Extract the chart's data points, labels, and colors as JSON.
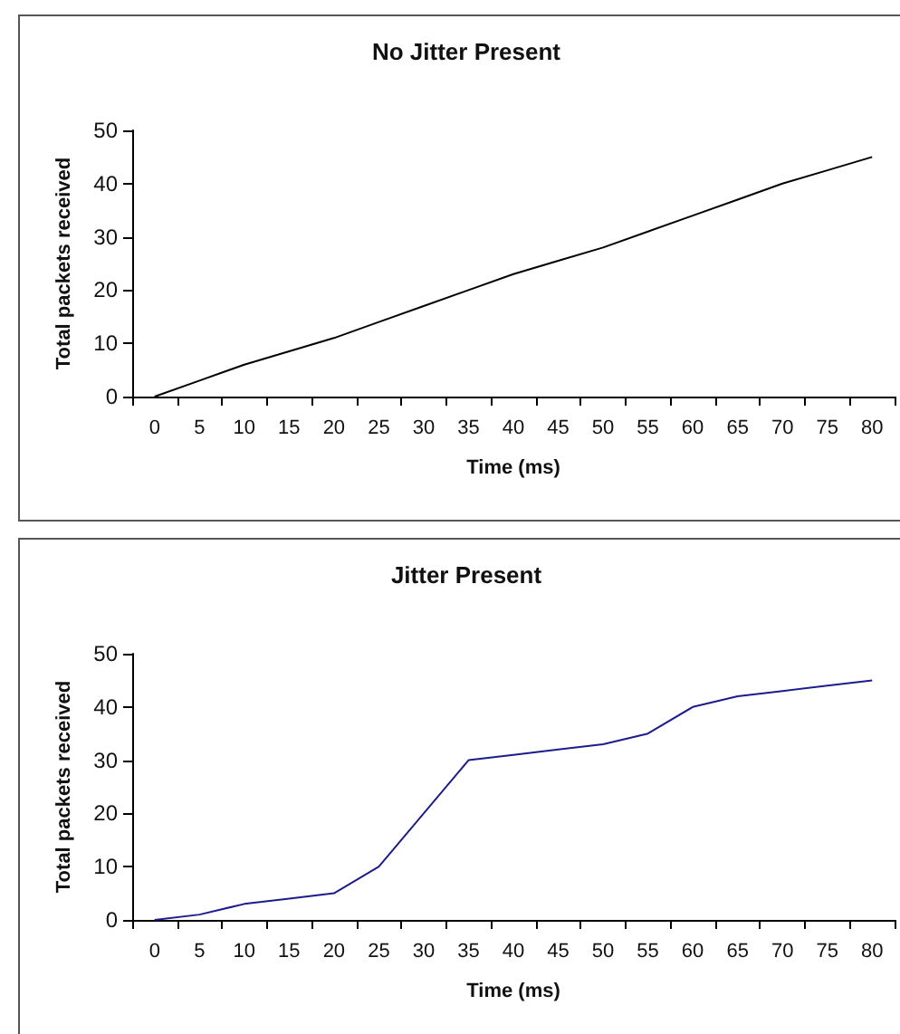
{
  "chart_data": [
    {
      "type": "line",
      "title": "No Jitter Present",
      "xlabel": "Time (ms)",
      "ylabel": "Total packets received",
      "categories": [
        "0",
        "5",
        "10",
        "15",
        "20",
        "25",
        "30",
        "35",
        "40",
        "45",
        "50",
        "55",
        "60",
        "65",
        "70",
        "75",
        "80"
      ],
      "series": [
        {
          "color": "#000000",
          "values": [
            0,
            3,
            6,
            8.5,
            11,
            14,
            17,
            20,
            23,
            25.5,
            28,
            31,
            34,
            37,
            40,
            42.5,
            45
          ]
        }
      ],
      "ylim": [
        0,
        50
      ],
      "yticks": [
        0,
        10,
        20,
        30,
        40,
        50
      ],
      "marker": "none"
    },
    {
      "type": "line",
      "title": "Jitter Present",
      "xlabel": "Time (ms)",
      "ylabel": "Total packets received",
      "categories": [
        "0",
        "5",
        "10",
        "15",
        "20",
        "25",
        "30",
        "35",
        "40",
        "45",
        "50",
        "55",
        "60",
        "65",
        "70",
        "75",
        "80"
      ],
      "series": [
        {
          "color": "#1c1c8c",
          "values": [
            0,
            1,
            3,
            4,
            5,
            10,
            20,
            30,
            31,
            32,
            33,
            35,
            40,
            42,
            43,
            44,
            45
          ]
        }
      ],
      "ylim": [
        0,
        50
      ],
      "yticks": [
        0,
        10,
        20,
        30,
        40,
        50
      ],
      "marker": "none"
    }
  ]
}
